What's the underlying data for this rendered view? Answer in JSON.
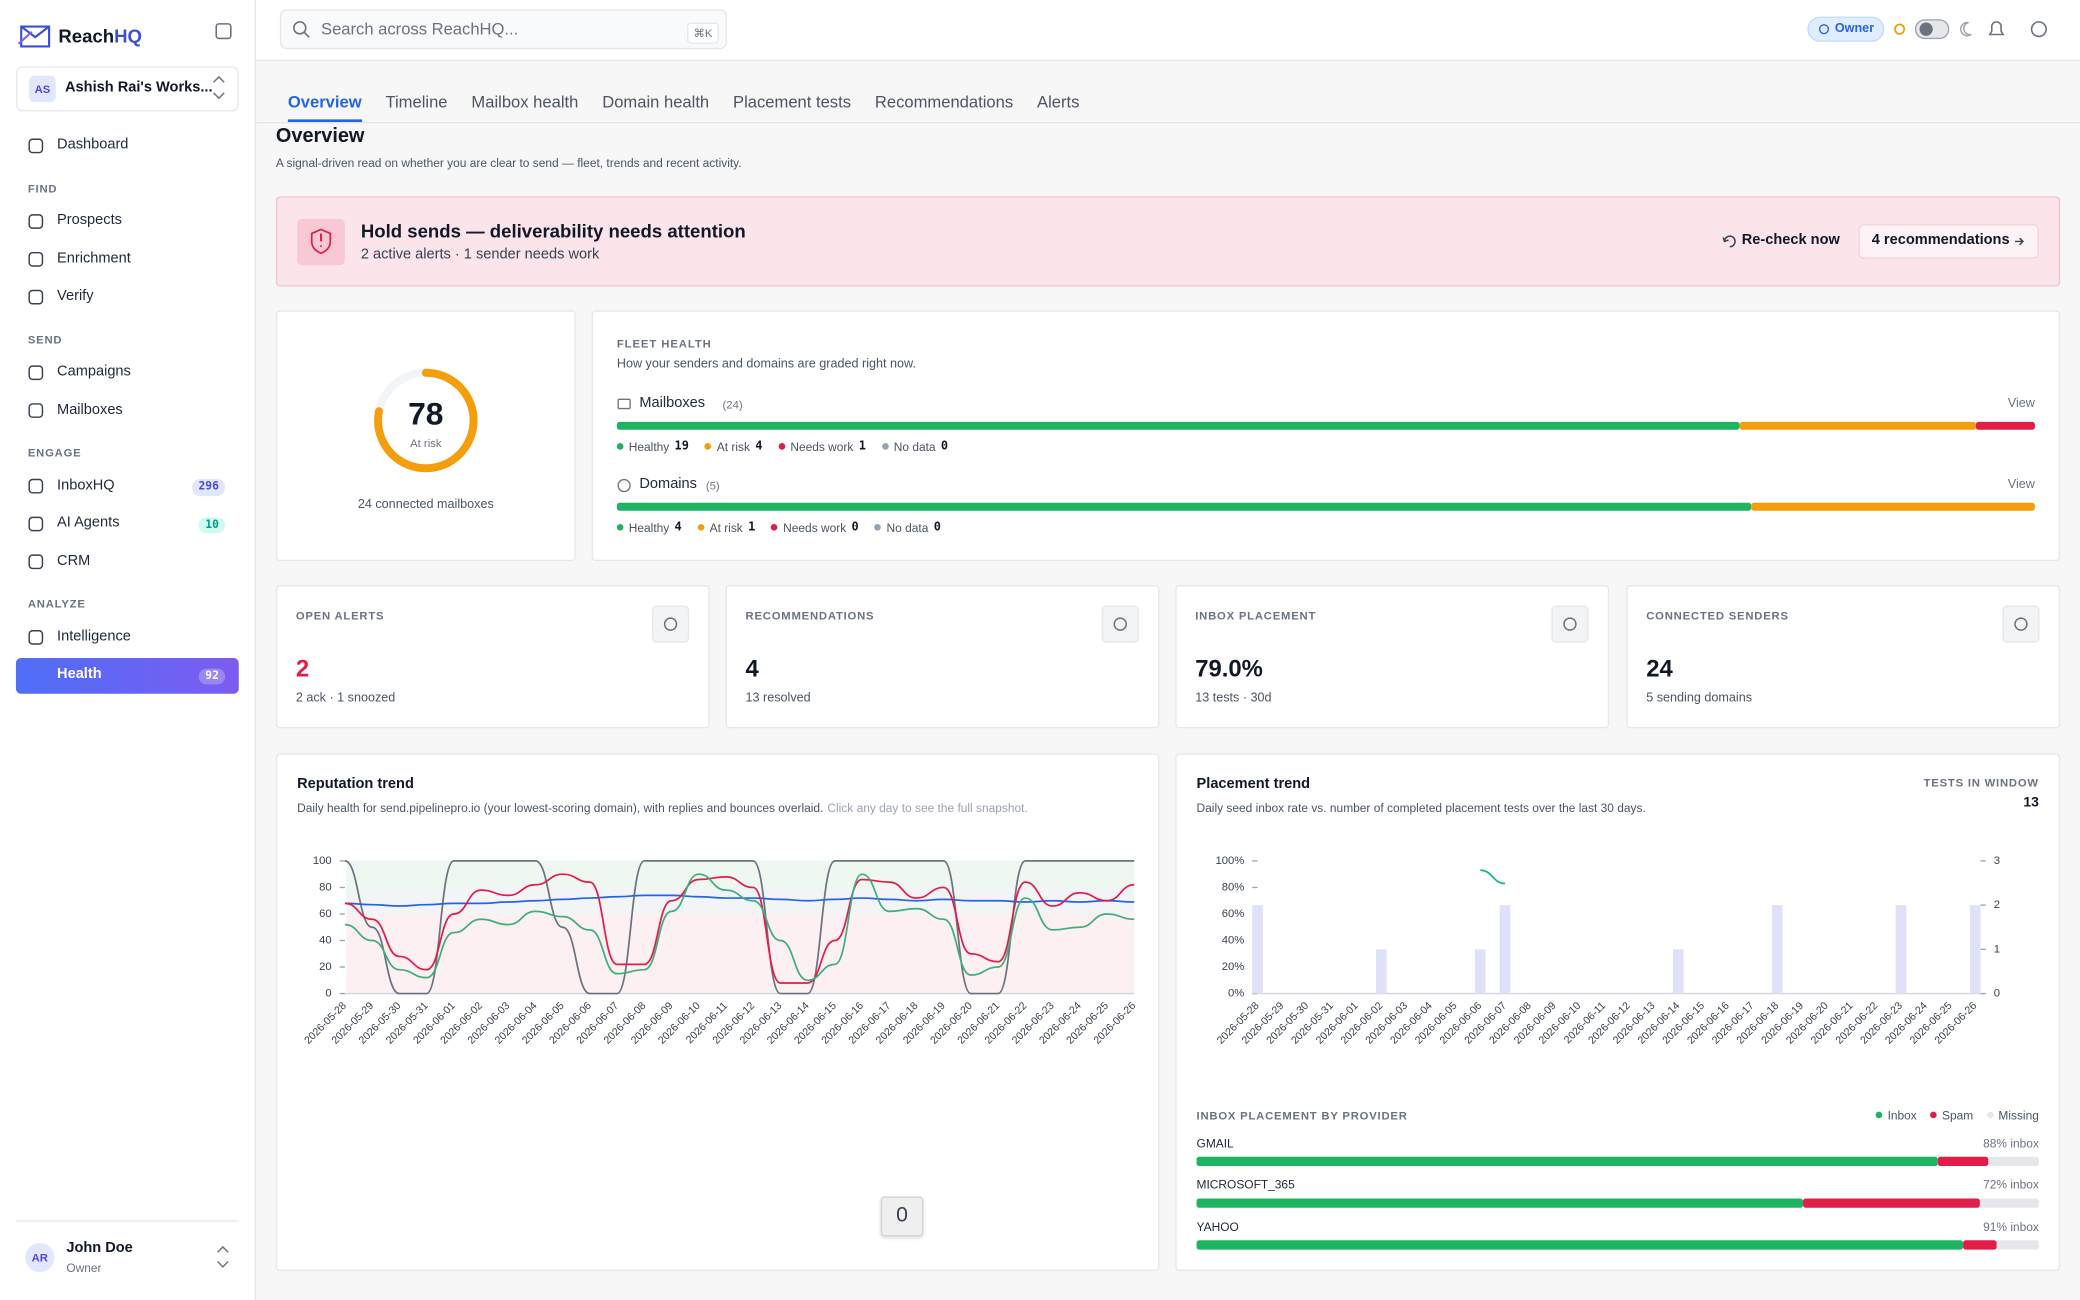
{
  "sidebar": {
    "brand": [
      "Reach",
      "HQ"
    ],
    "workspace": {
      "initials": "AS",
      "name": "Ashish Rai's Works..."
    },
    "nav": [
      {
        "items": [
          {
            "label": "Dashboard"
          }
        ]
      },
      {
        "heading": "FIND",
        "items": [
          {
            "label": "Prospects"
          },
          {
            "label": "Enrichment"
          },
          {
            "label": "Verify"
          }
        ]
      },
      {
        "heading": "SEND",
        "items": [
          {
            "label": "Campaigns"
          },
          {
            "label": "Mailboxes"
          }
        ]
      },
      {
        "heading": "ENGAGE",
        "items": [
          {
            "label": "InboxHQ",
            "badge": 296,
            "tone": "blue"
          },
          {
            "label": "AI Agents",
            "badge": 10,
            "tone": "teal"
          },
          {
            "label": "CRM"
          }
        ]
      },
      {
        "heading": "ANALYZE",
        "items": [
          {
            "label": "Intelligence"
          },
          {
            "label": "Health",
            "badge": 92,
            "active": true
          }
        ]
      }
    ],
    "user": {
      "initials": "AR",
      "name": "John Doe",
      "role": "Owner"
    }
  },
  "topbar": {
    "search_placeholder": "Search across ReachHQ...",
    "shortcut": "⌘K",
    "role": "Owner"
  },
  "tabs": {
    "items": [
      "Overview",
      "Timeline",
      "Mailbox health",
      "Domain health",
      "Placement tests",
      "Recommendations",
      "Alerts"
    ],
    "active": 0
  },
  "overview": {
    "title": "Overview",
    "subtitle": "A signal-driven read on whether you are clear to send — fleet, trends and recent activity."
  },
  "banner": {
    "title": "Hold sends — deliverability needs attention",
    "detail": "2 active alerts · 1 sender needs work",
    "recheck": "Re-check now",
    "recommendations": "4 recommendations"
  },
  "score": {
    "value": 78,
    "lim": [
      0,
      100
    ],
    "label": "At risk",
    "footer": "24 connected mailboxes"
  },
  "fleet": {
    "label": "FLEET HEALTH",
    "description": "How your senders and domains are graded right now.",
    "groups": [
      {
        "name": "Mailboxes",
        "count": "(24)",
        "action": "View",
        "statuses": [
          {
            "label": "Healthy",
            "value": 19,
            "color": "#1fb462"
          },
          {
            "label": "At risk",
            "value": 4,
            "color": "#f59e0b"
          },
          {
            "label": "Needs work",
            "value": 1,
            "color": "#e11d48"
          },
          {
            "label": "No data",
            "value": 0,
            "color": "#94a3b8"
          }
        ]
      },
      {
        "name": "Domains",
        "count": "(5)",
        "action": "View",
        "statuses": [
          {
            "label": "Healthy",
            "value": 4,
            "color": "#1fb462"
          },
          {
            "label": "At risk",
            "value": 1,
            "color": "#f59e0b"
          },
          {
            "label": "Needs work",
            "value": 0,
            "color": "#e11d48"
          },
          {
            "label": "No data",
            "value": 0,
            "color": "#94a3b8"
          }
        ]
      }
    ]
  },
  "stats": [
    {
      "label": "OPEN ALERTS",
      "value": 2,
      "detail": "2 ack · 1 snoozed",
      "color": "#e11d48"
    },
    {
      "label": "RECOMMENDATIONS",
      "value": 4,
      "detail": "13 resolved"
    },
    {
      "label": "INBOX PLACEMENT",
      "value": "79.0%",
      "detail": "13 tests · 30d"
    },
    {
      "label": "CONNECTED SENDERS",
      "value": 24,
      "detail": "5 sending domains"
    }
  ],
  "chart_data": [
    {
      "type": "line",
      "title": "Reputation trend",
      "subtitle": "Daily health for send.pipelinepro.io (your lowest-scoring domain), with replies and bounces overlaid.",
      "note": "Click any day to see the full snapshot.",
      "x": [
        "2026-05-28",
        "2026-05-29",
        "2026-05-30",
        "2026-05-31",
        "2026-06-01",
        "2026-06-02",
        "2026-06-03",
        "2026-06-04",
        "2026-06-05",
        "2026-06-06",
        "2026-06-07",
        "2026-06-08",
        "2026-06-09",
        "2026-06-10",
        "2026-06-11",
        "2026-06-12",
        "2026-06-13",
        "2026-06-14",
        "2026-06-15",
        "2026-06-16",
        "2026-06-17",
        "2026-06-18",
        "2026-06-19",
        "2026-06-20",
        "2026-06-21",
        "2026-06-22",
        "2026-06-23",
        "2026-06-24",
        "2026-06-25",
        "2026-06-26"
      ],
      "ylim": [
        0,
        100
      ],
      "yticks": [
        0,
        20,
        40,
        60,
        80,
        100
      ],
      "series": [
        {
          "color": "#6b7280",
          "values": [
            100,
            50,
            0,
            0,
            100,
            100,
            100,
            100,
            50,
            0,
            0,
            100,
            100,
            100,
            100,
            100,
            0,
            0,
            100,
            100,
            100,
            100,
            100,
            0,
            0,
            100,
            100,
            100,
            100,
            100
          ]
        },
        {
          "color": "#2563eb",
          "values": [
            68,
            67,
            66,
            67,
            68,
            68,
            69,
            70,
            71,
            72,
            73,
            74,
            74,
            73,
            72,
            72,
            71,
            70,
            71,
            72,
            71,
            70,
            71,
            70,
            70,
            69,
            70,
            69,
            70,
            69
          ]
        },
        {
          "color": "#e11d48",
          "values": [
            68,
            56,
            28,
            18,
            60,
            78,
            74,
            82,
            90,
            84,
            22,
            22,
            70,
            86,
            88,
            80,
            8,
            8,
            40,
            86,
            84,
            72,
            80,
            30,
            24,
            84,
            66,
            76,
            70,
            82
          ]
        },
        {
          "color": "#3fae7e",
          "values": [
            52,
            40,
            18,
            12,
            46,
            56,
            52,
            62,
            58,
            48,
            15,
            18,
            62,
            90,
            78,
            70,
            40,
            10,
            22,
            90,
            62,
            64,
            56,
            14,
            20,
            72,
            48,
            50,
            60,
            56
          ]
        }
      ]
    },
    {
      "type": "bar",
      "title": "Placement trend",
      "subtitle": "Daily seed inbox rate vs. number of completed placement tests over the last 30 days.",
      "tests_label": "TESTS IN WINDOW",
      "tests_value": 13,
      "x": [
        "2026-05-28",
        "2026-05-29",
        "2026-05-30",
        "2026-05-31",
        "2026-06-01",
        "2026-06-02",
        "2026-06-03",
        "2026-06-04",
        "2026-06-05",
        "2026-06-06",
        "2026-06-07",
        "2026-06-08",
        "2026-06-09",
        "2026-06-10",
        "2026-06-11",
        "2026-06-12",
        "2026-06-13",
        "2026-06-14",
        "2026-06-15",
        "2026-06-16",
        "2026-06-17",
        "2026-06-18",
        "2026-06-19",
        "2026-06-20",
        "2026-06-21",
        "2026-06-22",
        "2026-06-23",
        "2026-06-24",
        "2026-06-25",
        "2026-06-26"
      ],
      "ylim": [
        0,
        100
      ],
      "yticks": [
        {
          "value": 0,
          "label": "0%"
        },
        {
          "value": 20,
          "label": "20%"
        },
        {
          "value": 40,
          "label": "40%"
        },
        {
          "value": 60,
          "label": "60%"
        },
        {
          "value": 80,
          "label": "80%"
        },
        {
          "value": 100,
          "label": "100%"
        }
      ],
      "y2lim": [
        0,
        3
      ],
      "y2ticks": [
        0,
        1,
        2,
        3
      ],
      "series": [
        {
          "type": "bar",
          "axis": "y2",
          "color": "#dfe1fb",
          "values": [
            2,
            0,
            0,
            0,
            0,
            1,
            0,
            0,
            0,
            1,
            2,
            0,
            0,
            0,
            0,
            0,
            0,
            1,
            0,
            0,
            0,
            2,
            0,
            0,
            0,
            0,
            2,
            0,
            0,
            2
          ]
        },
        {
          "type": "line",
          "color": "#10b981",
          "values": [
            null,
            null,
            null,
            null,
            null,
            null,
            null,
            null,
            null,
            93,
            83,
            null,
            null,
            null,
            null,
            null,
            null,
            null,
            null,
            null,
            null,
            null,
            null,
            null,
            null,
            null,
            null,
            null,
            null,
            null
          ]
        }
      ]
    }
  ],
  "providers": {
    "label": "INBOX PLACEMENT BY PROVIDER",
    "legend": [
      {
        "label": "Inbox",
        "color": "#1fb462"
      },
      {
        "label": "Spam",
        "color": "#e11d48"
      },
      {
        "label": "Missing",
        "color": "#e5e7eb"
      }
    ],
    "rows": [
      {
        "name": "GMAIL",
        "values": [
          88,
          6,
          6
        ],
        "value_label": "88% inbox"
      },
      {
        "name": "MICROSOFT_365",
        "values": [
          72,
          21,
          7
        ],
        "value_label": "72% inbox"
      },
      {
        "name": "YAHOO",
        "values": [
          91,
          4,
          5
        ],
        "value_label": "91% inbox"
      }
    ]
  },
  "toast": 0
}
